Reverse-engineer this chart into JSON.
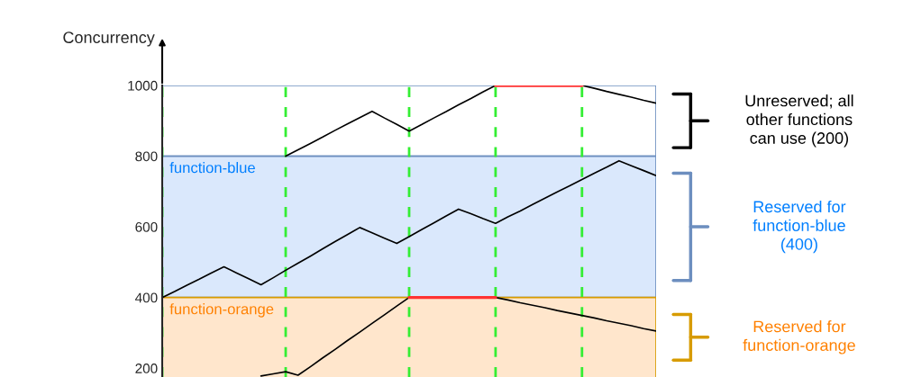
{
  "chart_data": {
    "type": "line",
    "ylabel": "Concurrency",
    "categories": [
      null,
      null,
      null,
      null,
      null,
      null,
      null,
      null,
      null,
      null,
      null,
      null,
      null,
      null,
      null,
      null,
      null,
      null,
      null,
      null,
      null,
      null,
      null,
      null,
      null,
      null,
      null,
      null,
      null,
      null,
      null,
      null,
      null,
      null,
      null,
      null,
      null,
      null,
      null,
      null,
      null
    ],
    "ylim": [
      175,
      1000
    ],
    "yticks": [
      200,
      400,
      600,
      800,
      1000
    ],
    "tick_labels": "y",
    "grid": "x",
    "marker": "none",
    "line_style": "solid",
    "series": [
      {
        "color": "#000000",
        "values": [
          null,
          null,
          null,
          null,
          null,
          null,
          null,
          null,
          null,
          null,
          800,
          818,
          836,
          854,
          873,
          891,
          909,
          927,
          908,
          890,
          871,
          889,
          908,
          926,
          945,
          963,
          982,
          1000,
          null,
          null,
          null,
          null,
          null,
          null,
          null,
          null,
          null,
          null,
          null,
          null,
          null
        ]
      },
      {
        "color": "#ff3333",
        "values": [
          null,
          null,
          null,
          null,
          null,
          null,
          null,
          null,
          null,
          null,
          null,
          null,
          null,
          null,
          null,
          null,
          null,
          null,
          null,
          null,
          null,
          null,
          null,
          null,
          null,
          null,
          null,
          1000,
          1000,
          1000,
          1000,
          1000,
          1000,
          1000,
          1000,
          null,
          null,
          null,
          null,
          null,
          null
        ]
      },
      {
        "color": "#000000",
        "values": [
          null,
          null,
          null,
          null,
          null,
          null,
          null,
          null,
          null,
          null,
          null,
          null,
          null,
          null,
          null,
          null,
          null,
          null,
          null,
          null,
          null,
          null,
          null,
          null,
          null,
          null,
          null,
          null,
          null,
          null,
          null,
          null,
          null,
          null,
          1000,
          992,
          983,
          975,
          967,
          958,
          950
        ]
      },
      {
        "color": "#000000",
        "values": [
          400,
          417,
          435,
          452,
          470,
          487,
          470,
          453,
          436,
          456,
          477,
          497,
          517,
          538,
          558,
          578,
          598,
          583,
          568,
          553,
          572,
          592,
          611,
          631,
          650,
          637,
          623,
          610,
          628,
          645,
          663,
          681,
          699,
          716,
          734,
          752,
          769,
          787,
          773,
          759,
          745
        ]
      },
      {
        "color": "#000000",
        "values": [
          null,
          null,
          null,
          null,
          null,
          null,
          null,
          null,
          178,
          184,
          190,
          180,
          204,
          229,
          253,
          278,
          302,
          327,
          351,
          376,
          400,
          null,
          null,
          null,
          null,
          null,
          null,
          null,
          null,
          null,
          null,
          null,
          null,
          null,
          null,
          null,
          null,
          null,
          null,
          null,
          null
        ]
      },
      {
        "color": "#ff3333",
        "values": [
          null,
          null,
          null,
          null,
          null,
          null,
          null,
          null,
          null,
          null,
          null,
          null,
          null,
          null,
          null,
          null,
          null,
          null,
          null,
          null,
          400,
          400,
          400,
          400,
          400,
          400,
          400,
          400,
          null,
          null,
          null,
          null,
          null,
          null,
          null,
          null,
          null,
          null,
          null,
          null,
          null
        ]
      },
      {
        "color": "#000000",
        "values": [
          null,
          null,
          null,
          null,
          null,
          null,
          null,
          null,
          null,
          null,
          null,
          null,
          null,
          null,
          null,
          null,
          null,
          null,
          null,
          null,
          null,
          null,
          null,
          null,
          null,
          null,
          null,
          400,
          393,
          385,
          378,
          371,
          363,
          356,
          349,
          342,
          334,
          327,
          320,
          312,
          305
        ]
      }
    ],
    "bands": [
      {
        "axis": "y",
        "from": 800,
        "to": 1000,
        "color": "#ffffff"
      },
      {
        "axis": "y",
        "from": 400,
        "to": 800,
        "color": "#dae8fc",
        "label": "function-blue"
      },
      {
        "axis": "y",
        "from": 0,
        "to": 400,
        "color": "#ffe6cc",
        "label": "function-orange"
      }
    ],
    "annotations": [
      "Unreserved; all\nother functions\ncan use (200)",
      "Reserved for\nfunction-blue\n(400)",
      "Reserved for\nfunction-orange"
    ]
  }
}
